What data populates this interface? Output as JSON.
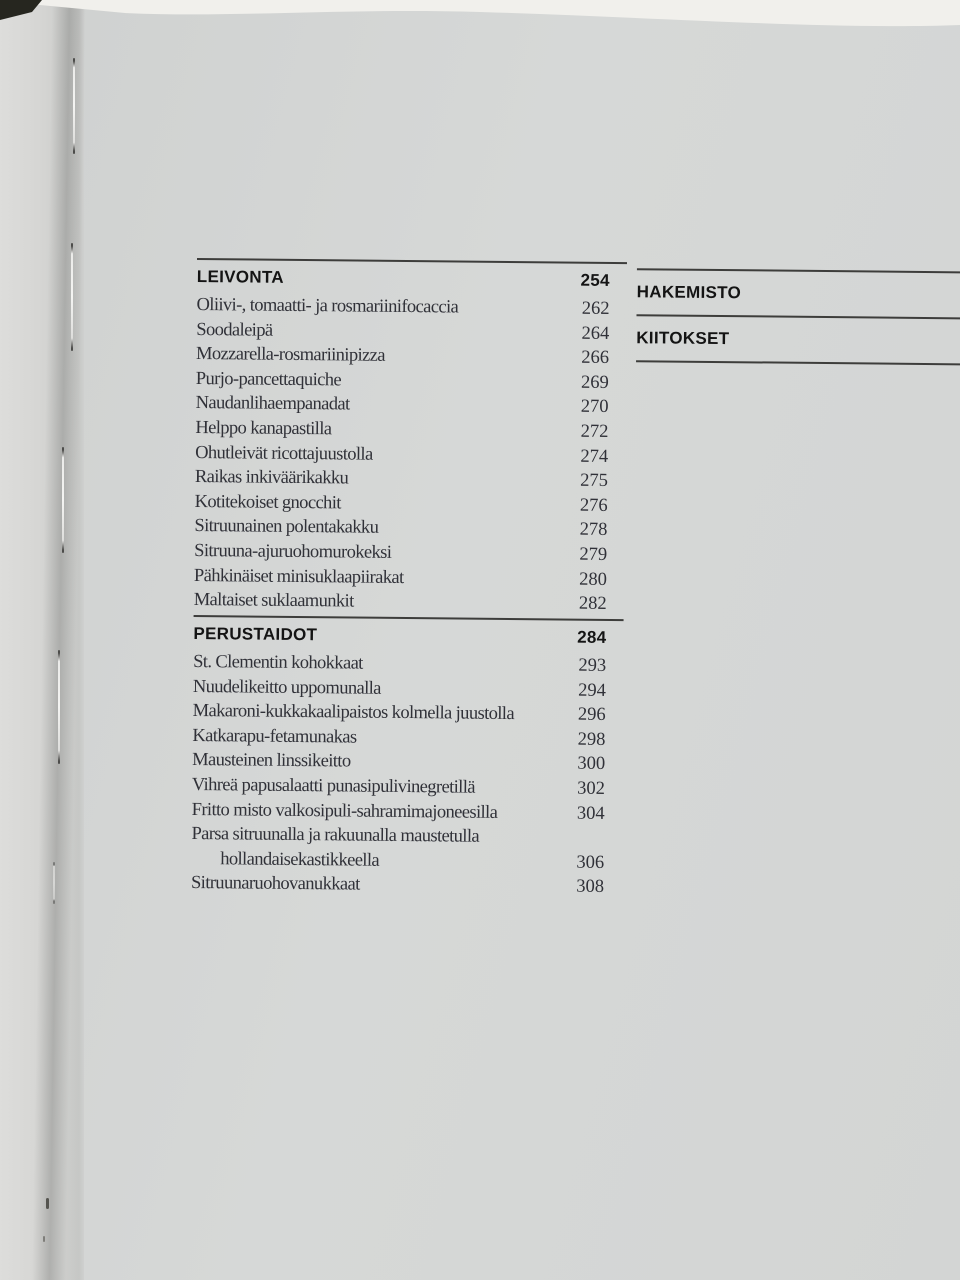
{
  "toc": {
    "left_sections": [
      {
        "title": "LEIVONTA",
        "page": "254",
        "items": [
          {
            "label": "Oliivi-, tomaatti- ja rosmariinifocaccia",
            "page": "262"
          },
          {
            "label": "Soodaleipä",
            "page": "264"
          },
          {
            "label": "Mozzarella-rosmariinipizza",
            "page": "266"
          },
          {
            "label": "Purjo-pancettaquiche",
            "page": "269"
          },
          {
            "label": "Naudanlihaempanadat",
            "page": "270"
          },
          {
            "label": "Helppo kanapastilla",
            "page": "272"
          },
          {
            "label": "Ohutleivät ricottajuustolla",
            "page": "274"
          },
          {
            "label": "Raikas inkiväärikakku",
            "page": "275"
          },
          {
            "label": "Kotitekoiset gnocchit",
            "page": "276"
          },
          {
            "label": "Sitruunainen polentakakku",
            "page": "278"
          },
          {
            "label": "Sitruuna-ajuruohomurokeksi",
            "page": "279"
          },
          {
            "label": "Pähkinäiset minisuklaapiirakat",
            "page": "280"
          },
          {
            "label": "Maltaiset suklaamunkit",
            "page": "282"
          }
        ]
      },
      {
        "title": "PERUSTAIDOT",
        "page": "284",
        "items": [
          {
            "label": "St. Clementin kohokkaat",
            "page": "293"
          },
          {
            "label": "Nuudelikeitto uppomunalla",
            "page": "294"
          },
          {
            "label": "Makaroni-kukkakaalipaistos kolmella juustolla",
            "page": "296"
          },
          {
            "label": "Katkarapu-fetamunakas",
            "page": "298"
          },
          {
            "label": "Mausteinen linssikeitto",
            "page": "300"
          },
          {
            "label": "Vihreä papusalaatti punasipulivinegretillä",
            "page": "302"
          },
          {
            "label": "Fritto misto valkosipuli-sahramimajoneesilla",
            "page": "304"
          },
          {
            "label": "Parsa sitruunalla ja rakuunalla maustetulla",
            "page": ""
          },
          {
            "label": "hollandaisekastikkeella",
            "page": "306",
            "indent": true
          },
          {
            "label": "Sitruunaruohovanukkaat",
            "page": "308"
          }
        ]
      }
    ],
    "right_sections": [
      {
        "title": "HAKEMISTO"
      },
      {
        "title": "KIITOKSET"
      }
    ]
  },
  "colors": {
    "page_background": "#d4d6d5",
    "backdrop": "#f1f0ec",
    "dark_corner": "#26261f",
    "divider_rule": "#3d3d3b",
    "heading_text": "#141414",
    "body_text": "#303138"
  }
}
